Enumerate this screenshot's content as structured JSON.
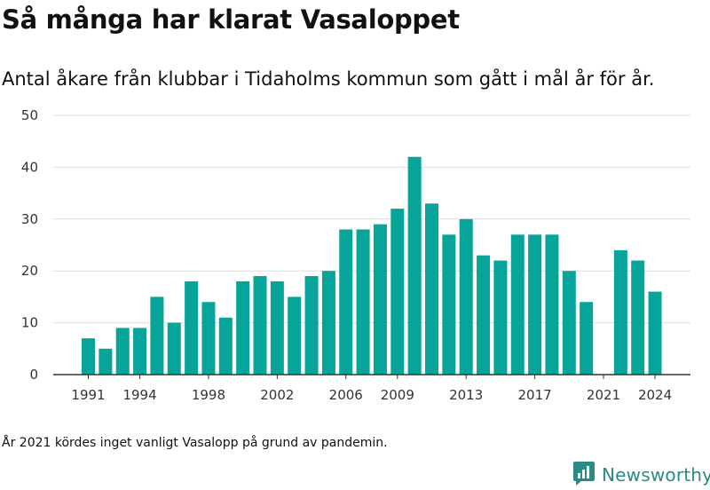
{
  "header": {
    "title": "Så många har klarat Vasaloppet",
    "subtitle": "Antal åkare från klubbar i Tidaholms kommun som gått i mål år för år."
  },
  "footnote": "År 2021 kördes inget vanligt Vasalopp på grund av pandemin.",
  "brand": {
    "name": "Newsworthy",
    "icon": "newsworthy-logo-icon",
    "color": "#2a8a85"
  },
  "colors": {
    "bar": "#06a499",
    "grid": "#dddddd",
    "axis": "#333333"
  },
  "chart_data": {
    "type": "bar",
    "title": "Så många har klarat Vasaloppet",
    "subtitle": "Antal åkare från klubbar i Tidaholms kommun som gått i mål år för år.",
    "xlabel": "",
    "ylabel": "",
    "ylim": [
      0,
      50
    ],
    "yticks": [
      0,
      10,
      20,
      30,
      40,
      50
    ],
    "xticks": [
      1991,
      1994,
      1998,
      2002,
      2006,
      2009,
      2013,
      2017,
      2021,
      2024
    ],
    "grid": true,
    "categories": [
      1991,
      1992,
      1993,
      1994,
      1995,
      1996,
      1997,
      1998,
      1999,
      2000,
      2001,
      2002,
      2003,
      2004,
      2005,
      2006,
      2007,
      2008,
      2009,
      2010,
      2011,
      2012,
      2013,
      2014,
      2015,
      2016,
      2017,
      2018,
      2019,
      2020,
      2021,
      2022,
      2023,
      2024
    ],
    "values": [
      7,
      5,
      9,
      9,
      15,
      10,
      18,
      14,
      11,
      18,
      19,
      18,
      15,
      19,
      20,
      28,
      28,
      29,
      32,
      42,
      33,
      27,
      30,
      23,
      22,
      27,
      27,
      27,
      20,
      14,
      0,
      24,
      22,
      16
    ]
  }
}
